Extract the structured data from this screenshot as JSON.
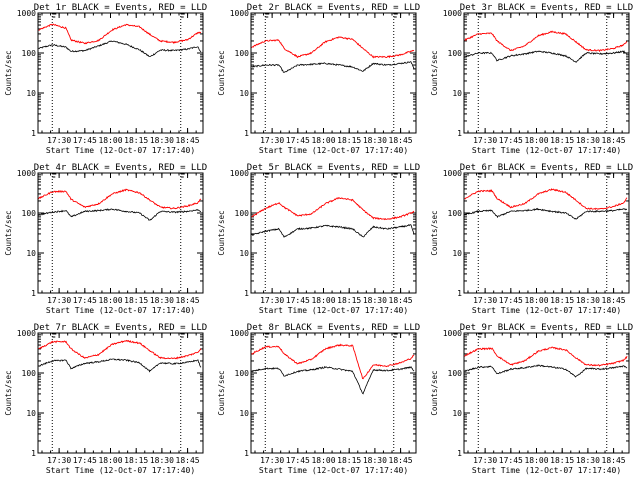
{
  "chart_data": {
    "type": "line",
    "layout": "3x3 grid of panels",
    "y_scale": "log",
    "ylim": [
      1,
      1000
    ],
    "y_tick_labels": [
      "1",
      "10",
      "100",
      "1000"
    ],
    "x_tick_labels": [
      "17:30",
      "17:45",
      "18:00",
      "18:15",
      "18:30",
      "18:45"
    ],
    "x_tick_times": [
      "17:30",
      "17:45",
      "18:00",
      "18:15",
      "18:30",
      "18:45"
    ],
    "xlim": [
      "17:17:40",
      "18:54:00"
    ],
    "ylabel": "Counts/sec",
    "xlabel": "Start Time (12-Oct-07 17:17:40)",
    "vertical_markers": [
      "17:26",
      "18:41"
    ],
    "colors": {
      "events": "#000000",
      "lld": "#ff0000",
      "axes": "#000000"
    },
    "sample_times": [
      "17:18",
      "17:26",
      "17:34",
      "17:37",
      "17:45",
      "17:53",
      "18:01",
      "18:09",
      "18:17",
      "18:23",
      "18:29",
      "18:37",
      "18:45",
      "18:51",
      "18:53"
    ],
    "panels": [
      {
        "title": "Det 1r BLACK = Events, RED = LLD",
        "events": [
          130,
          160,
          140,
          110,
          115,
          150,
          200,
          165,
          120,
          80,
          118,
          115,
          125,
          145,
          100
        ],
        "lld": [
          380,
          520,
          420,
          210,
          175,
          205,
          380,
          510,
          450,
          290,
          200,
          185,
          215,
          320,
          330
        ]
      },
      {
        "title": "Det 2r BLACK = Events, RED = LLD",
        "events": [
          45,
          50,
          50,
          32,
          50,
          52,
          55,
          50,
          45,
          35,
          55,
          50,
          55,
          60,
          40
        ],
        "lld": [
          140,
          200,
          210,
          130,
          80,
          100,
          190,
          250,
          220,
          130,
          80,
          80,
          90,
          110,
          115
        ]
      },
      {
        "title": "Det 3r BLACK = Events, RED = LLD",
        "events": [
          80,
          100,
          100,
          65,
          85,
          95,
          110,
          100,
          85,
          60,
          100,
          95,
          100,
          110,
          95
        ],
        "lld": [
          210,
          300,
          310,
          200,
          115,
          150,
          270,
          340,
          300,
          190,
          120,
          115,
          130,
          160,
          200
        ]
      },
      {
        "title": "Det 4r BLACK = Events, RED = LLD",
        "events": [
          90,
          105,
          115,
          80,
          110,
          115,
          125,
          110,
          100,
          65,
          110,
          105,
          110,
          120,
          110
        ],
        "lld": [
          230,
          340,
          350,
          220,
          140,
          170,
          300,
          380,
          320,
          210,
          140,
          130,
          150,
          180,
          230
        ]
      },
      {
        "title": "Det 5r BLACK = Events, RED = LLD",
        "events": [
          28,
          35,
          40,
          25,
          40,
          42,
          48,
          45,
          40,
          25,
          45,
          40,
          45,
          50,
          28
        ],
        "lld": [
          80,
          130,
          180,
          140,
          85,
          95,
          170,
          240,
          210,
          120,
          75,
          70,
          80,
          100,
          110
        ]
      },
      {
        "title": "Det 6r BLACK = Events, RED = LLD",
        "events": [
          90,
          110,
          115,
          80,
          110,
          115,
          125,
          110,
          100,
          70,
          110,
          110,
          115,
          125,
          120
        ],
        "lld": [
          230,
          350,
          360,
          230,
          140,
          170,
          300,
          390,
          330,
          210,
          130,
          125,
          145,
          180,
          240
        ]
      },
      {
        "title": "Det 7r BLACK = Events, RED = LLD",
        "events": [
          150,
          200,
          210,
          130,
          175,
          190,
          220,
          210,
          180,
          110,
          180,
          170,
          185,
          210,
          130
        ],
        "lld": [
          400,
          600,
          610,
          400,
          235,
          290,
          520,
          640,
          560,
          360,
          240,
          230,
          270,
          330,
          420
        ]
      },
      {
        "title": "Det 8r BLACK = Events, RED = LLD",
        "events": [
          110,
          130,
          130,
          85,
          110,
          120,
          140,
          125,
          110,
          30,
          120,
          115,
          125,
          140,
          110
        ],
        "lld": [
          300,
          450,
          460,
          300,
          170,
          220,
          400,
          500,
          480,
          70,
          160,
          150,
          180,
          230,
          290
        ]
      },
      {
        "title": "Det 9r BLACK = Events, RED = LLD",
        "events": [
          110,
          140,
          145,
          95,
          125,
          135,
          155,
          140,
          125,
          80,
          130,
          125,
          135,
          150,
          130
        ],
        "lld": [
          270,
          400,
          410,
          270,
          160,
          200,
          350,
          430,
          380,
          240,
          160,
          155,
          175,
          210,
          260
        ]
      }
    ]
  }
}
